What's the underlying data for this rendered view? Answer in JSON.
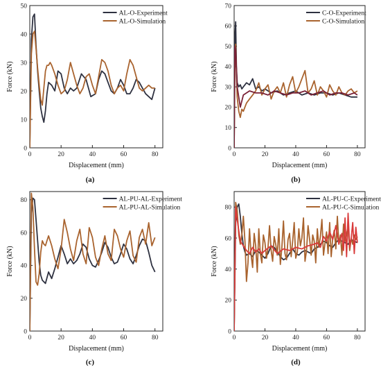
{
  "colors": {
    "experiment": "#2e3140",
    "simulation": "#a9632e",
    "experiment_red": "#7a2136",
    "simulation_red": "#d93a3a"
  },
  "chart_data": [
    {
      "type": "line",
      "panel_label": "(a)",
      "xlabel": "Displacement (mm)",
      "ylabel": "Force (kN)",
      "xlim": [
        0,
        85
      ],
      "ylim": [
        0,
        50
      ],
      "xticks": [
        "0",
        "20",
        "40",
        "60",
        "80"
      ],
      "xtick_values": [
        0,
        20,
        40,
        60,
        80
      ],
      "yticks": [
        "0",
        "10",
        "20",
        "30",
        "40",
        "50"
      ],
      "ytick_values": [
        0,
        10,
        20,
        30,
        40,
        50
      ],
      "legend_position": "top-right",
      "series": [
        {
          "name": "AL-O-Experiment",
          "color": "#2e3140",
          "x": [
            0,
            1,
            2,
            3,
            4,
            5,
            6,
            7,
            8,
            9,
            10,
            11,
            12,
            14,
            16,
            18,
            20,
            22,
            24,
            26,
            28,
            30,
            33,
            36,
            39,
            42,
            44,
            46,
            48,
            50,
            52,
            54,
            56,
            58,
            60,
            62,
            64,
            66,
            68,
            70,
            72,
            74,
            76,
            78,
            80
          ],
          "y": [
            0,
            38,
            46,
            47,
            36,
            27,
            20,
            14,
            11,
            9,
            13,
            19,
            23,
            22,
            20,
            27,
            26,
            21,
            19,
            21,
            20,
            21,
            26,
            24,
            18,
            19,
            24,
            27,
            26,
            23,
            20,
            19,
            21,
            24,
            22,
            19,
            19,
            21,
            24,
            23,
            21,
            19,
            18,
            17,
            21
          ]
        },
        {
          "name": "AL-O-Simulation",
          "color": "#a9632e",
          "x": [
            0,
            1,
            2,
            3,
            4,
            5,
            6,
            7,
            8,
            9,
            10,
            11,
            12,
            13,
            14,
            16,
            18,
            20,
            22,
            24,
            26,
            28,
            30,
            32,
            34,
            36,
            38,
            40,
            42,
            44,
            46,
            48,
            50,
            52,
            54,
            56,
            58,
            60,
            62,
            64,
            66,
            68,
            70,
            72,
            74,
            76,
            78,
            80
          ],
          "y": [
            0,
            33,
            40,
            41,
            35,
            28,
            22,
            17,
            15,
            21,
            27,
            29,
            29,
            30,
            29,
            26,
            22,
            19,
            20,
            24,
            30,
            26,
            22,
            19,
            21,
            25,
            26,
            22,
            19,
            25,
            31,
            30,
            27,
            22,
            19,
            21,
            22,
            20,
            26,
            31,
            29,
            25,
            21,
            20,
            21,
            22,
            21,
            21
          ]
        }
      ]
    },
    {
      "type": "line",
      "panel_label": "(b)",
      "xlabel": "Displacement (mm)",
      "ylabel": "Force (kN)",
      "xlim": [
        0,
        85
      ],
      "ylim": [
        0,
        70
      ],
      "xticks": [
        "0",
        "20",
        "40",
        "60",
        "80"
      ],
      "xtick_values": [
        0,
        20,
        40,
        60,
        80
      ],
      "yticks": [
        "0",
        "10",
        "20",
        "30",
        "40",
        "50",
        "60",
        "70"
      ],
      "ytick_values": [
        0,
        10,
        20,
        30,
        40,
        50,
        60,
        70
      ],
      "legend_position": "top-right",
      "series": [
        {
          "name": "C-O-Experiment",
          "color": "#2e3140",
          "x": [
            0,
            0.5,
            1,
            1.5,
            2,
            3,
            4,
            5,
            6,
            7,
            8,
            10,
            12,
            14,
            16,
            18,
            20,
            24,
            28,
            32,
            36,
            40,
            44,
            48,
            52,
            56,
            60,
            64,
            68,
            72,
            76,
            80
          ],
          "y": [
            0,
            55,
            62,
            40,
            32,
            30,
            31,
            29,
            30,
            31,
            32,
            31,
            34,
            29,
            30,
            28,
            29,
            27,
            28,
            26,
            27,
            28,
            26,
            27,
            26,
            27,
            27,
            26,
            27,
            26,
            25,
            25
          ]
        },
        {
          "name": "C-O-Simulation",
          "color": "#a9632e",
          "x": [
            0,
            0.5,
            1,
            1.5,
            2,
            3,
            4,
            5,
            6,
            8,
            10,
            12,
            14,
            16,
            18,
            20,
            22,
            24,
            26,
            28,
            30,
            32,
            34,
            36,
            38,
            40,
            42,
            44,
            46,
            48,
            50,
            52,
            54,
            56,
            58,
            60,
            62,
            64,
            66,
            68,
            70,
            72,
            74,
            76,
            78,
            80
          ],
          "y": [
            0,
            40,
            51,
            38,
            25,
            18,
            15,
            19,
            18,
            22,
            24,
            26,
            28,
            32,
            26,
            29,
            31,
            24,
            28,
            30,
            27,
            32,
            25,
            31,
            35,
            27,
            30,
            34,
            38,
            27,
            29,
            33,
            26,
            30,
            28,
            25,
            31,
            28,
            26,
            30,
            27,
            26,
            28,
            29,
            27,
            28
          ]
        },
        {
          "name": "",
          "color": "#7a2136",
          "x": [
            0,
            0.5,
            1,
            2,
            4,
            6,
            10,
            14,
            18,
            22,
            26,
            30,
            34,
            38,
            42,
            46,
            50,
            54,
            58,
            62,
            66,
            70,
            74,
            78,
            80
          ],
          "y": [
            0,
            50,
            48,
            30,
            20,
            26,
            28,
            27,
            27,
            26,
            28,
            27,
            26,
            27,
            27,
            28,
            26,
            27,
            28,
            26,
            27,
            27,
            26,
            27,
            26
          ]
        }
      ]
    },
    {
      "type": "line",
      "panel_label": "(c)",
      "xlabel": "Displacement (mm)",
      "ylabel": "Force (kN)",
      "xlim": [
        0,
        85
      ],
      "ylim": [
        0,
        85
      ],
      "xticks": [
        "0",
        "20",
        "40",
        "60",
        "80"
      ],
      "xtick_values": [
        0,
        20,
        40,
        60,
        80
      ],
      "yticks": [
        "0",
        "20",
        "40",
        "60",
        "80"
      ],
      "ytick_values": [
        0,
        20,
        40,
        60,
        80
      ],
      "legend_position": "top-right",
      "series": [
        {
          "name": "AL-PU-AL-Experiment",
          "color": "#2e3140",
          "x": [
            0,
            1,
            2,
            3,
            4,
            5,
            6,
            7,
            8,
            10,
            12,
            14,
            16,
            18,
            20,
            22,
            24,
            26,
            28,
            30,
            32,
            34,
            36,
            38,
            40,
            42,
            44,
            46,
            48,
            50,
            52,
            54,
            56,
            58,
            60,
            62,
            64,
            66,
            68,
            70,
            72,
            74,
            76,
            78,
            80
          ],
          "y": [
            0,
            72,
            81,
            80,
            68,
            55,
            42,
            34,
            31,
            29,
            36,
            32,
            38,
            45,
            52,
            47,
            41,
            44,
            41,
            43,
            47,
            53,
            51,
            44,
            40,
            39,
            43,
            48,
            54,
            51,
            45,
            41,
            42,
            47,
            53,
            50,
            44,
            41,
            46,
            52,
            56,
            55,
            48,
            40,
            36
          ]
        },
        {
          "name": "AL-PU-AL-Simulation",
          "color": "#a9632e",
          "x": [
            0,
            1,
            2,
            3,
            4,
            5,
            6,
            7,
            8,
            9,
            10,
            11,
            12,
            14,
            16,
            18,
            20,
            22,
            24,
            26,
            28,
            30,
            32,
            34,
            36,
            38,
            40,
            42,
            44,
            46,
            48,
            50,
            52,
            54,
            56,
            58,
            60,
            62,
            64,
            66,
            68,
            70,
            72,
            74,
            76,
            78,
            80
          ],
          "y": [
            0,
            84,
            75,
            50,
            30,
            28,
            35,
            48,
            55,
            53,
            52,
            55,
            58,
            52,
            44,
            38,
            50,
            68,
            60,
            50,
            43,
            55,
            62,
            47,
            41,
            63,
            57,
            45,
            40,
            50,
            58,
            47,
            43,
            62,
            58,
            50,
            45,
            55,
            61,
            46,
            42,
            57,
            62,
            53,
            66,
            52,
            57
          ]
        }
      ]
    },
    {
      "type": "line",
      "panel_label": "(d)",
      "xlabel": "Displacement (mm)",
      "ylabel": "Force (kN)",
      "xlim": [
        0,
        85
      ],
      "ylim": [
        0,
        90
      ],
      "xticks": [
        "0",
        "20",
        "40",
        "60",
        "80"
      ],
      "xtick_values": [
        0,
        20,
        40,
        60,
        80
      ],
      "yticks": [
        "0",
        "20",
        "40",
        "60",
        "80"
      ],
      "ytick_values": [
        0,
        20,
        40,
        60,
        80
      ],
      "legend_position": "top-right",
      "series": [
        {
          "name": "AL-PU-C-Experiment",
          "color": "#2e3140",
          "x": [
            0,
            1,
            2,
            3,
            4,
            5,
            6,
            7,
            8,
            10,
            12,
            14,
            16,
            18,
            20,
            22,
            24,
            26,
            28,
            30,
            32,
            34,
            36,
            38,
            40,
            42,
            44,
            46,
            48,
            50,
            52,
            54,
            56,
            58,
            60,
            62,
            64,
            66,
            68,
            70,
            72,
            74,
            76,
            78,
            80
          ],
          "y": [
            0,
            70,
            80,
            82,
            74,
            63,
            55,
            51,
            49,
            50,
            48,
            52,
            51,
            49,
            47,
            50,
            55,
            54,
            51,
            48,
            46,
            47,
            50,
            53,
            50,
            49,
            51,
            52,
            51,
            50,
            53,
            54,
            56,
            58,
            57,
            55,
            54,
            57,
            59,
            58,
            57,
            56,
            59,
            58,
            57
          ]
        },
        {
          "name": "AL-PU-C-Simulation",
          "color": "#a9632e",
          "x": [
            0,
            1,
            2,
            3,
            4,
            5,
            6,
            7,
            8,
            9,
            10,
            11,
            12,
            13,
            14,
            15,
            16,
            17,
            18,
            19,
            20,
            21,
            22,
            23,
            24,
            25,
            26,
            27,
            28,
            29,
            30,
            31,
            32,
            33,
            34,
            35,
            36,
            37,
            38,
            39,
            40,
            41,
            42,
            43,
            44,
            45,
            46,
            47,
            48,
            49,
            50,
            51,
            52,
            53,
            54,
            55,
            56,
            57,
            58,
            59,
            60,
            61,
            62,
            63,
            64,
            65,
            66,
            67,
            68,
            69,
            70,
            71,
            72,
            73,
            74,
            75,
            76,
            77,
            78,
            79,
            80
          ],
          "y": [
            0,
            83,
            78,
            62,
            56,
            62,
            74,
            58,
            32,
            44,
            66,
            49,
            41,
            63,
            55,
            38,
            66,
            50,
            44,
            62,
            57,
            47,
            54,
            68,
            52,
            45,
            61,
            56,
            49,
            66,
            43,
            54,
            71,
            50,
            46,
            59,
            63,
            48,
            58,
            70,
            47,
            51,
            66,
            55,
            60,
            73,
            45,
            52,
            68,
            59,
            49,
            62,
            58,
            44,
            66,
            54,
            61,
            72,
            49,
            57,
            64,
            50,
            70,
            48,
            60,
            65,
            53,
            74,
            56,
            62,
            49,
            69,
            58,
            63,
            67,
            52,
            60,
            56,
            62,
            59,
            61
          ]
        },
        {
          "name": "",
          "color": "#d93a3a",
          "x": [
            0,
            1,
            2,
            4,
            6,
            8,
            10,
            12,
            14,
            16,
            18,
            20,
            24,
            28,
            32,
            36,
            40,
            44,
            48,
            52,
            54,
            56,
            58,
            60,
            62,
            64,
            66,
            68,
            70,
            71,
            72,
            73,
            74,
            75,
            76,
            77,
            78,
            79,
            80
          ],
          "y": [
            0,
            80,
            72,
            58,
            55,
            52,
            50,
            54,
            51,
            53,
            50,
            52,
            55,
            50,
            53,
            52,
            54,
            53,
            55,
            56,
            57,
            54,
            61,
            58,
            64,
            59,
            68,
            56,
            63,
            52,
            73,
            48,
            76,
            54,
            60,
            70,
            50,
            67,
            57
          ]
        }
      ]
    }
  ]
}
